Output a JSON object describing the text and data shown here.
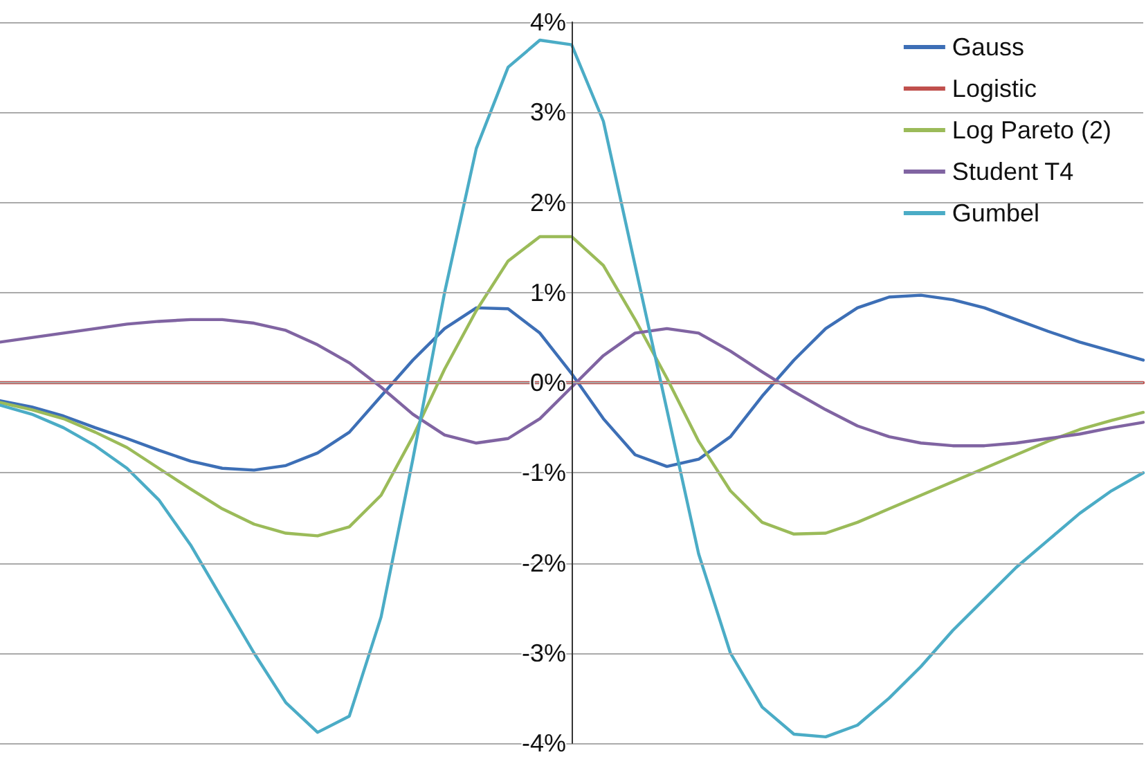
{
  "chart_data": {
    "type": "line",
    "categories": [
      null,
      null,
      null,
      null,
      null,
      null,
      null,
      null,
      null,
      null,
      null,
      null,
      null,
      null,
      null,
      null,
      null,
      null,
      null,
      null,
      null,
      null,
      null,
      null,
      null,
      null,
      null,
      null,
      null,
      null,
      null,
      null,
      null,
      null,
      null,
      null,
      null
    ],
    "series": [
      {
        "name": "Gauss",
        "color": "#3d6fb6",
        "values": [
          -0.2,
          -0.27,
          -0.37,
          -0.5,
          -0.62,
          -0.75,
          -0.87,
          -0.95,
          -0.97,
          -0.92,
          -0.78,
          -0.55,
          -0.15,
          0.25,
          0.6,
          0.83,
          0.82,
          0.55,
          0.1,
          -0.4,
          -0.8,
          -0.93,
          -0.85,
          -0.6,
          -0.15,
          0.25,
          0.6,
          0.83,
          0.95,
          0.97,
          0.92,
          0.83,
          0.7,
          0.57,
          0.45,
          0.35,
          0.25
        ]
      },
      {
        "name": "Logistic",
        "color": "#c0504d",
        "values": [
          0,
          0,
          0,
          0,
          0,
          0,
          0,
          0,
          0,
          0,
          0,
          0,
          0,
          0,
          0,
          0,
          0,
          0,
          0,
          0,
          0,
          0,
          0,
          0,
          0,
          0,
          0,
          0,
          0,
          0,
          0,
          0,
          0,
          0,
          0,
          0,
          0
        ]
      },
      {
        "name": "Log Pareto (2)",
        "color": "#9bbb59",
        "values": [
          -0.22,
          -0.3,
          -0.4,
          -0.55,
          -0.72,
          -0.95,
          -1.18,
          -1.4,
          -1.57,
          -1.67,
          -1.7,
          -1.6,
          -1.25,
          -0.6,
          0.15,
          0.8,
          1.35,
          1.62,
          1.62,
          1.3,
          0.7,
          0.05,
          -0.65,
          -1.2,
          -1.55,
          -1.68,
          -1.67,
          -1.55,
          -1.4,
          -1.25,
          -1.1,
          -0.95,
          -0.8,
          -0.65,
          -0.52,
          -0.42,
          -0.33
        ]
      },
      {
        "name": "Student T4",
        "color": "#8064a2",
        "values": [
          0.45,
          0.5,
          0.55,
          0.6,
          0.65,
          0.68,
          0.7,
          0.7,
          0.66,
          0.58,
          0.42,
          0.22,
          -0.05,
          -0.35,
          -0.58,
          -0.67,
          -0.62,
          -0.4,
          -0.05,
          0.3,
          0.55,
          0.6,
          0.55,
          0.35,
          0.12,
          -0.1,
          -0.3,
          -0.48,
          -0.6,
          -0.67,
          -0.7,
          -0.7,
          -0.67,
          -0.62,
          -0.57,
          -0.5,
          -0.44
        ]
      },
      {
        "name": "Gumbel",
        "color": "#4bacc6",
        "values": [
          -0.25,
          -0.35,
          -0.5,
          -0.7,
          -0.95,
          -1.3,
          -1.8,
          -2.4,
          -3.0,
          -3.55,
          -3.88,
          -3.7,
          -2.6,
          -0.85,
          1.0,
          2.6,
          3.5,
          3.8,
          3.75,
          2.9,
          1.3,
          -0.3,
          -1.9,
          -3.0,
          -3.6,
          -3.9,
          -3.93,
          -3.8,
          -3.5,
          -3.15,
          -2.75,
          -2.4,
          -2.05,
          -1.75,
          -1.45,
          -1.2,
          -1.0
        ]
      }
    ],
    "ylim": [
      -4,
      4
    ],
    "yticks": [
      {
        "value": -4,
        "label": "-4%"
      },
      {
        "value": -3,
        "label": "-3%"
      },
      {
        "value": -2,
        "label": "-2%"
      },
      {
        "value": -1,
        "label": "-1%"
      },
      {
        "value": 0,
        "label": "0%"
      },
      {
        "value": 1,
        "label": "1%"
      },
      {
        "value": 2,
        "label": "2%"
      },
      {
        "value": 3,
        "label": "3%"
      },
      {
        "value": 4,
        "label": "4%"
      }
    ],
    "grid": "y",
    "legend": "top right",
    "tick_labels": "y",
    "marker": "none",
    "line_style": "solid"
  }
}
